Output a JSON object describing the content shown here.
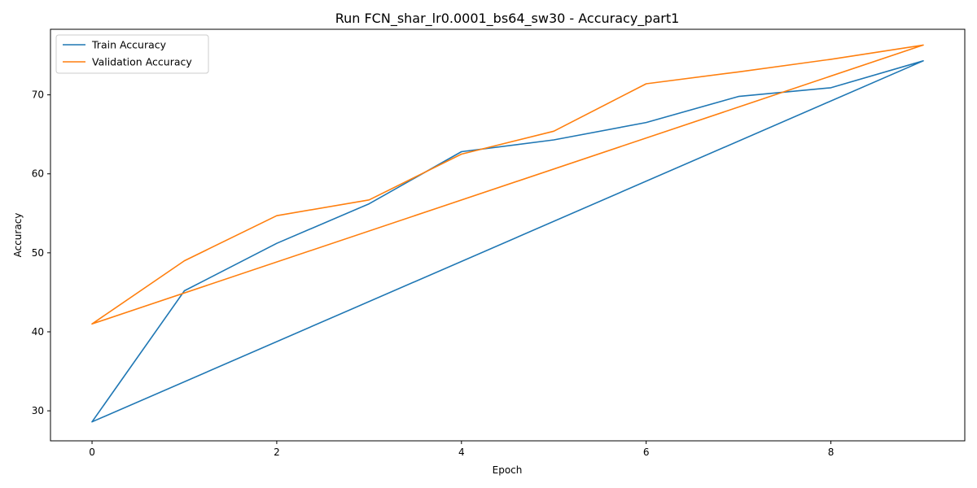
{
  "chart_data": {
    "type": "line",
    "title": "Run FCN_shar_lr0.0001_bs64_sw30 - Accuracy_part1",
    "xlabel": "Epoch",
    "ylabel": "Accuracy",
    "xlim": [
      -0.45,
      9.45
    ],
    "ylim": [
      26.2,
      78.3
    ],
    "xticks": [
      0,
      2,
      4,
      6,
      8
    ],
    "yticks": [
      30,
      40,
      50,
      60,
      70
    ],
    "grid": false,
    "legend_position": "top-left",
    "series": [
      {
        "name": "Train Accuracy",
        "color": "#1f77b4",
        "x": [
          0,
          1,
          2,
          3,
          4,
          5,
          6,
          7,
          8,
          9,
          0
        ],
        "y": [
          28.6,
          45.2,
          51.2,
          56.2,
          62.8,
          64.3,
          66.5,
          69.8,
          70.9,
          74.3,
          28.6
        ]
      },
      {
        "name": "Validation Accuracy",
        "color": "#ff7f0e",
        "x": [
          0,
          1,
          2,
          3,
          4,
          5,
          6,
          7,
          8,
          9,
          0
        ],
        "y": [
          41.0,
          49.0,
          54.7,
          56.7,
          62.5,
          65.4,
          71.4,
          72.9,
          74.5,
          76.3,
          41.0
        ]
      }
    ]
  }
}
